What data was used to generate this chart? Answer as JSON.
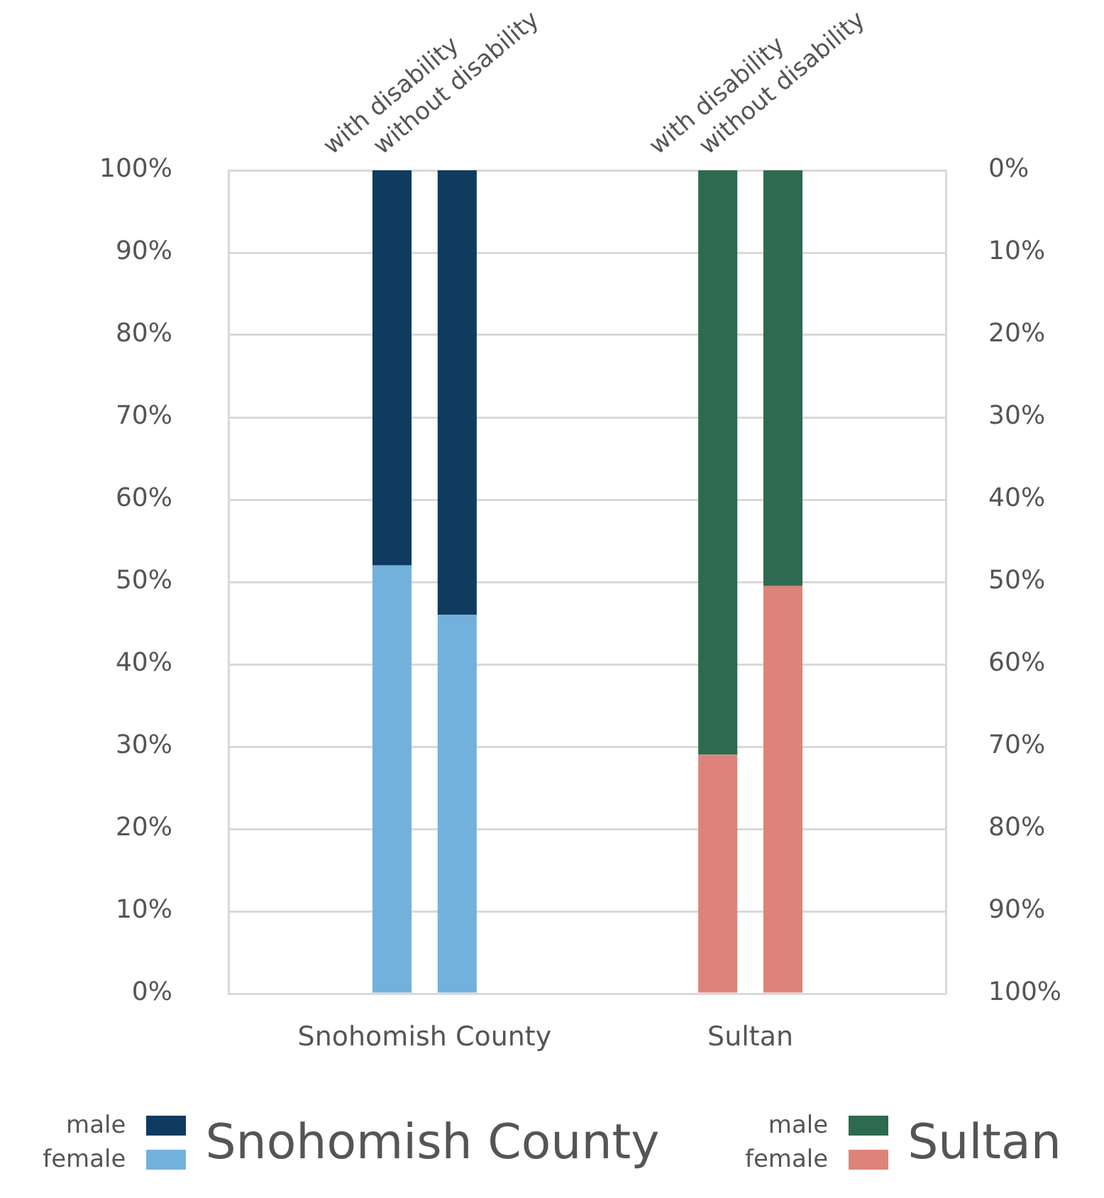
{
  "chart_data": {
    "type": "bar",
    "stacked": true,
    "categories": [
      null,
      null,
      "with disability",
      "without disability",
      null,
      null,
      null,
      "with disability",
      "without disability",
      null,
      null
    ],
    "series": [
      {
        "name": "female",
        "color": "#73b1dd",
        "values": [
          null,
          null,
          52,
          46,
          null,
          null,
          null,
          null,
          null,
          null,
          null
        ]
      },
      {
        "name": "male",
        "color": "#0f3b60",
        "values": [
          null,
          null,
          48,
          54,
          null,
          null,
          null,
          null,
          null,
          null,
          null
        ]
      },
      {
        "name": "female",
        "color": "#de8379",
        "values": [
          null,
          null,
          null,
          null,
          null,
          null,
          null,
          29,
          49.5,
          null,
          null
        ]
      },
      {
        "name": "male",
        "color": "#2e6a4f",
        "values": [
          null,
          null,
          null,
          null,
          null,
          null,
          null,
          71,
          50.5,
          null,
          null
        ]
      }
    ],
    "ylim": [
      0,
      100
    ],
    "yticks": [
      {
        "value": 0,
        "label": "0%"
      },
      {
        "value": 10,
        "label": "10%"
      },
      {
        "value": 20,
        "label": "20%"
      },
      {
        "value": 30,
        "label": "30%"
      },
      {
        "value": 40,
        "label": "40%"
      },
      {
        "value": 50,
        "label": "50%"
      },
      {
        "value": 60,
        "label": "60%"
      },
      {
        "value": 70,
        "label": "70%"
      },
      {
        "value": 80,
        "label": "80%"
      },
      {
        "value": 90,
        "label": "90%"
      },
      {
        "value": 100,
        "label": "100%"
      }
    ],
    "y2lim": [
      100,
      0
    ],
    "y2ticks": [
      {
        "value": 100,
        "label": "100%"
      },
      {
        "value": 90,
        "label": "90%"
      },
      {
        "value": 80,
        "label": "80%"
      },
      {
        "value": 70,
        "label": "70%"
      },
      {
        "value": 60,
        "label": "60%"
      },
      {
        "value": 50,
        "label": "50%"
      },
      {
        "value": 40,
        "label": "40%"
      },
      {
        "value": 30,
        "label": "30%"
      },
      {
        "value": 20,
        "label": "20%"
      },
      {
        "value": 10,
        "label": "10%"
      },
      {
        "value": 0,
        "label": "0%"
      }
    ],
    "grid": "y",
    "legend": "bottom",
    "annotations": [
      "Snohomish County",
      "Sultan"
    ]
  }
}
